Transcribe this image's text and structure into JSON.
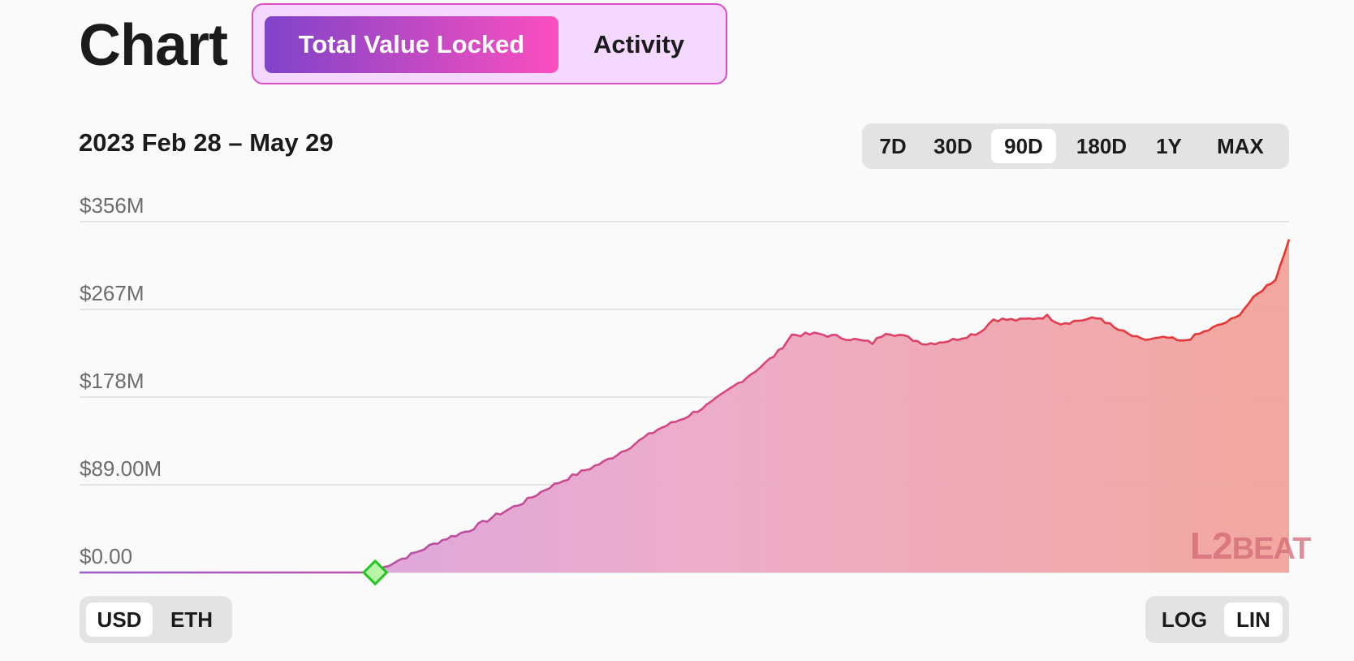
{
  "header": {
    "title": "Chart",
    "tabs": [
      {
        "label": "Total Value Locked",
        "active": true
      },
      {
        "label": "Activity",
        "active": false
      }
    ]
  },
  "date_range": "2023 Feb 28 – May 29",
  "time_ranges": [
    {
      "label": "7D",
      "selected": false
    },
    {
      "label": "30D",
      "selected": false
    },
    {
      "label": "90D",
      "selected": true
    },
    {
      "label": "180D",
      "selected": false
    },
    {
      "label": "1Y",
      "selected": false
    },
    {
      "label": "MAX",
      "selected": false
    }
  ],
  "units": [
    {
      "label": "USD",
      "selected": true
    },
    {
      "label": "ETH",
      "selected": false
    }
  ],
  "scales": [
    {
      "label": "LOG",
      "selected": false
    },
    {
      "label": "LIN",
      "selected": true
    }
  ],
  "colors": {
    "accent_start": "#8f4fc9",
    "accent_end": "#fb4fbf",
    "line_start": "#9b59c8",
    "line_end": "#e8352a",
    "marker": "#22c522"
  },
  "logo": {
    "text_a": "L",
    "text_b": "2",
    "text_c": "BEAT"
  },
  "chart_data": {
    "type": "area",
    "x_range": [
      "2023-02-28",
      "2023-05-29"
    ],
    "y_ticks": [
      "$0.00",
      "$89.00M",
      "$178M",
      "$267M",
      "$356M"
    ],
    "ylim": [
      0,
      356
    ],
    "y_unit": "$M",
    "grid": true,
    "marker": {
      "date": "2023-03-22",
      "value": 0
    },
    "points": [
      [
        "2023-02-28",
        0
      ],
      [
        "2023-03-22",
        0
      ],
      [
        "2023-03-23",
        8
      ],
      [
        "2023-03-25",
        20
      ],
      [
        "2023-03-27",
        33
      ],
      [
        "2023-03-29",
        43
      ],
      [
        "2023-03-31",
        58
      ],
      [
        "2023-04-02",
        71
      ],
      [
        "2023-04-04",
        87
      ],
      [
        "2023-04-06",
        100
      ],
      [
        "2023-04-08",
        112
      ],
      [
        "2023-04-10",
        128
      ],
      [
        "2023-04-12",
        145
      ],
      [
        "2023-04-14",
        157
      ],
      [
        "2023-04-16",
        172
      ],
      [
        "2023-04-18",
        192
      ],
      [
        "2023-04-20",
        212
      ],
      [
        "2023-04-21",
        224
      ],
      [
        "2023-04-22",
        241
      ],
      [
        "2023-04-24",
        242
      ],
      [
        "2023-04-26",
        238
      ],
      [
        "2023-04-28",
        233
      ],
      [
        "2023-04-29",
        244
      ],
      [
        "2023-04-30",
        241
      ],
      [
        "2023-05-02",
        232
      ],
      [
        "2023-05-04",
        236
      ],
      [
        "2023-05-06",
        244
      ],
      [
        "2023-05-07",
        257
      ],
      [
        "2023-05-09",
        256
      ],
      [
        "2023-05-11",
        260
      ],
      [
        "2023-05-12",
        253
      ],
      [
        "2023-05-14",
        257
      ],
      [
        "2023-05-15",
        258
      ],
      [
        "2023-05-16",
        248
      ],
      [
        "2023-05-18",
        236
      ],
      [
        "2023-05-20",
        238
      ],
      [
        "2023-05-21",
        234
      ],
      [
        "2023-05-23",
        246
      ],
      [
        "2023-05-25",
        258
      ],
      [
        "2023-05-26",
        273
      ],
      [
        "2023-05-27",
        287
      ],
      [
        "2023-05-28",
        298
      ],
      [
        "2023-05-29",
        338
      ]
    ]
  }
}
